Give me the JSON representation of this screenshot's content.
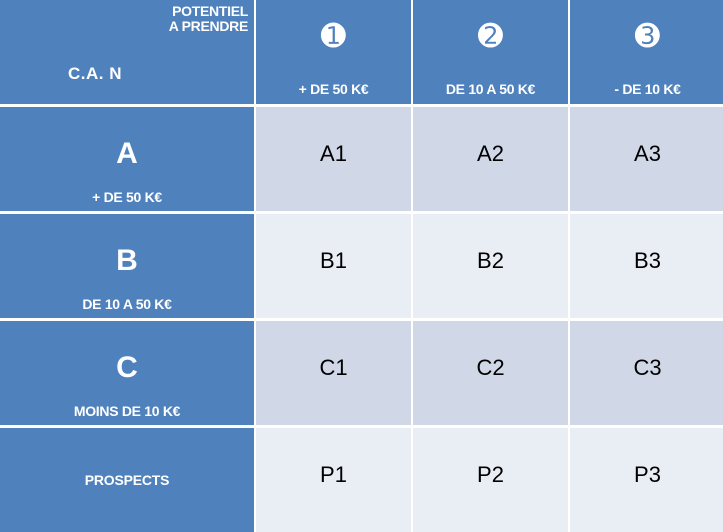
{
  "header": {
    "potentiel_line1": "POTENTIEL",
    "potentiel_line2": "A PRENDRE",
    "can_label": "C.A. N"
  },
  "columns": [
    {
      "number": "➊",
      "range": "+ DE 50 K€"
    },
    {
      "number": "➋",
      "range": "DE 10 A 50 K€"
    },
    {
      "number": "➌",
      "range": "- DE 10 K€"
    }
  ],
  "rows": [
    {
      "letter": "A",
      "range": "+ DE 50 K€",
      "cells": [
        "A1",
        "A2",
        "A3"
      ]
    },
    {
      "letter": "B",
      "range": "DE 10 A 50 K€",
      "cells": [
        "B1",
        "B2",
        "B3"
      ]
    },
    {
      "letter": "C",
      "range": "MOINS DE 10 K€",
      "cells": [
        "C1",
        "C2",
        "C3"
      ]
    },
    {
      "label": "PROSPECTS",
      "cells": [
        "P1",
        "P2",
        "P3"
      ]
    }
  ],
  "colors": {
    "header_blue": "#4f81bd",
    "cell_dark": "#d0d8e8",
    "cell_light": "#e9edf4"
  }
}
